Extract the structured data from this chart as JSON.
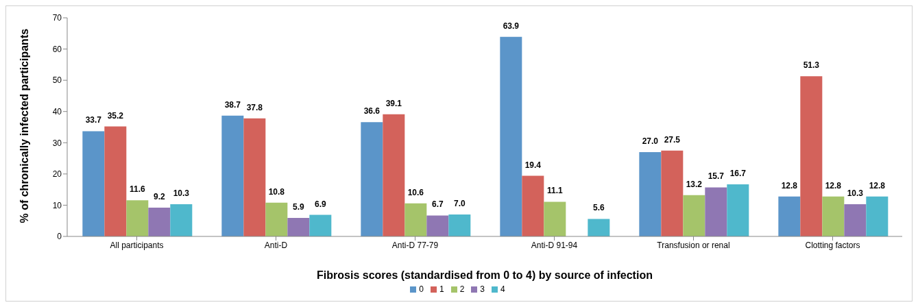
{
  "chart_data": {
    "type": "bar",
    "xlabel": "Fibrosis scores (standardised from 0 to 4) by source of infection",
    "ylabel": "% of chronically infected participants",
    "categories": [
      "All participants",
      "Anti-D",
      "Anti-D 77-79",
      "Anti-D 91-94",
      "Transfusion or renal",
      "Clotting factors"
    ],
    "series": [
      {
        "name": "0",
        "color": "#5b95c9",
        "values": [
          33.7,
          38.7,
          36.6,
          63.9,
          27.0,
          12.8
        ],
        "value_labels": [
          "33.7",
          "38.7",
          "36.6",
          "63.9",
          "27.0",
          "12.8"
        ]
      },
      {
        "name": "1",
        "color": "#d3625b",
        "values": [
          35.2,
          37.8,
          39.1,
          19.4,
          27.5,
          51.3
        ],
        "value_labels": [
          "35.2",
          "37.8",
          "39.1",
          "19.4",
          "27.5",
          "51.3"
        ]
      },
      {
        "name": "2",
        "color": "#a5c46a",
        "values": [
          11.6,
          10.8,
          10.6,
          11.1,
          13.2,
          12.8
        ],
        "value_labels": [
          "11.6",
          "10.8",
          "10.6",
          "11.1",
          "13.2",
          "12.8"
        ]
      },
      {
        "name": "3",
        "color": "#8f77b3",
        "values": [
          9.2,
          5.9,
          6.7,
          null,
          15.7,
          10.3
        ],
        "value_labels": [
          "9.2",
          "5.9",
          "6.7",
          null,
          "15.7",
          "10.3"
        ]
      },
      {
        "name": "4",
        "color": "#4fb8cc",
        "values": [
          10.3,
          6.9,
          7.0,
          5.6,
          16.7,
          12.8
        ],
        "value_labels": [
          "10.3",
          "6.9",
          "7.0",
          "5.6",
          "16.7",
          "12.8"
        ]
      }
    ],
    "ylim": [
      0,
      70
    ],
    "yticks": [
      0,
      10,
      20,
      30,
      40,
      50,
      60,
      70
    ],
    "legend": "bottom",
    "grid": false
  }
}
